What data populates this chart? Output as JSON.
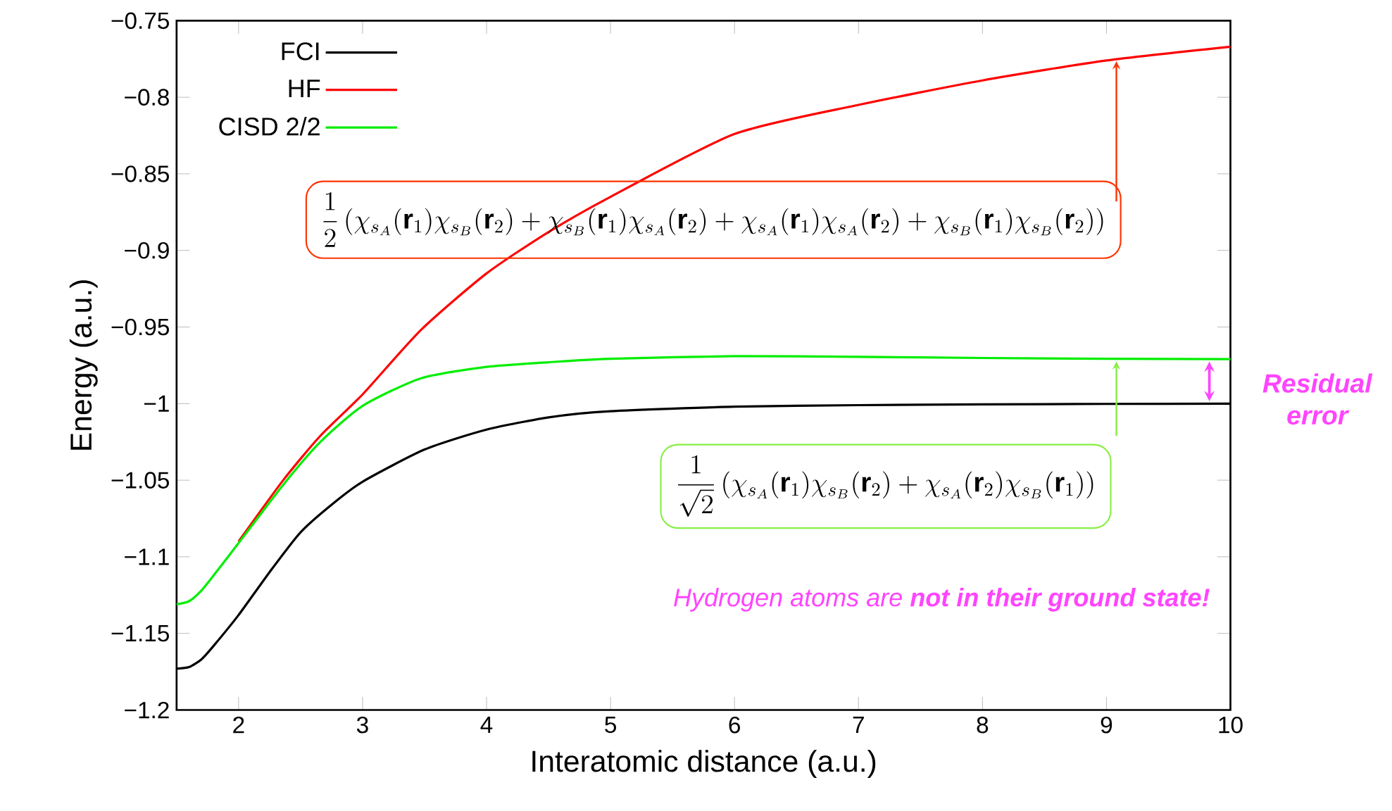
{
  "chart_data": {
    "type": "line",
    "xlabel": "Interatomic distance (a.u.)",
    "ylabel": "Energy (a.u.)",
    "xlim": [
      1.5,
      10
    ],
    "ylim": [
      -1.2,
      -0.75
    ],
    "xticks": [
      2,
      3,
      4,
      5,
      6,
      7,
      8,
      9,
      10
    ],
    "yticks": [
      {
        "value": -1.2,
        "label": "−1.2"
      },
      {
        "value": -1.15,
        "label": "−1.15"
      },
      {
        "value": -1.1,
        "label": "−1.1"
      },
      {
        "value": -1.05,
        "label": "−1.05"
      },
      {
        "value": -1.0,
        "label": "−1"
      },
      {
        "value": -0.95,
        "label": "−0.95"
      },
      {
        "value": -0.9,
        "label": "−0.9"
      },
      {
        "value": -0.85,
        "label": "−0.85"
      },
      {
        "value": -0.8,
        "label": "−0.8"
      },
      {
        "value": -0.75,
        "label": "−0.75"
      }
    ],
    "legend": "top left",
    "marker": "none",
    "line_style": "solid",
    "series": [
      {
        "name": "FCI",
        "color": "#000000",
        "x": [
          1.5,
          1.6,
          1.7,
          1.8,
          2.0,
          2.25,
          2.5,
          2.75,
          3.0,
          3.5,
          4.0,
          4.5,
          5.0,
          6.0,
          7.0,
          8.0,
          9.0,
          10.0
        ],
        "values": [
          -1.173,
          -1.172,
          -1.167,
          -1.158,
          -1.138,
          -1.11,
          -1.084,
          -1.066,
          -1.051,
          -1.03,
          -1.017,
          -1.009,
          -1.005,
          -1.002,
          -1.001,
          -1.0005,
          -1.0002,
          -1.0
        ]
      },
      {
        "name": "HF",
        "color": "#ff0000",
        "x": [
          2.0,
          2.36,
          2.66,
          3.0,
          3.47,
          4.0,
          4.5,
          5.0,
          6.0,
          7.0,
          8.0,
          9.0,
          10.0
        ],
        "values": [
          -1.09,
          -1.05,
          -1.021,
          -0.994,
          -0.952,
          -0.915,
          -0.888,
          -0.865,
          -0.824,
          -0.805,
          -0.789,
          -0.776,
          -0.767
        ]
      },
      {
        "name": "CISD 2/2",
        "color": "#00ee00",
        "x": [
          1.5,
          1.6,
          1.7,
          1.8,
          2.0,
          2.36,
          2.66,
          3.0,
          3.47,
          4.0,
          4.5,
          5.0,
          6.0,
          7.0,
          8.0,
          9.0,
          10.0
        ],
        "values": [
          -1.131,
          -1.129,
          -1.122,
          -1.112,
          -1.091,
          -1.053,
          -1.025,
          -1.0015,
          -0.9835,
          -0.976,
          -0.973,
          -0.9707,
          -0.969,
          -0.9695,
          -0.9702,
          -0.9707,
          -0.971
        ]
      }
    ],
    "annotations": [
      "\\frac{1}{2}\\left(\\chi_{s_A}(\\mathbf{r}_1)\\chi_{s_B}(\\mathbf{r}_2)+\\chi_{s_B}(\\mathbf{r}_1)\\chi_{s_A}(\\mathbf{r}_2)+\\chi_{s_A}(\\mathbf{r}_1)\\chi_{s_A}(\\mathbf{r}_2)+\\chi_{s_B}(\\mathbf{r}_1)\\chi_{s_B}(\\mathbf{r}_2)\\right)",
      "\\frac{1}{\\sqrt{2}}\\left(\\chi_{s_A}(\\mathbf{r}_1)\\chi_{s_B}(\\mathbf{r}_2)+\\chi_{s_A}(\\mathbf{r}_2)\\chi_{s_B}(\\mathbf{r}_1)\\right)",
      "Residual error",
      "Hydrogen atoms are **not in their ground state!**"
    ]
  }
}
